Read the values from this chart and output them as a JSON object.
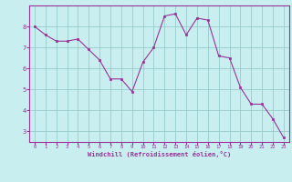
{
  "x": [
    0,
    1,
    2,
    3,
    4,
    5,
    6,
    7,
    8,
    9,
    10,
    11,
    12,
    13,
    14,
    15,
    16,
    17,
    18,
    19,
    20,
    21,
    22,
    23
  ],
  "y": [
    8.0,
    7.6,
    7.3,
    7.3,
    7.4,
    6.9,
    6.4,
    5.5,
    5.5,
    4.9,
    6.3,
    7.0,
    8.5,
    8.6,
    7.6,
    8.4,
    8.3,
    6.6,
    6.5,
    5.1,
    4.3,
    4.3,
    3.6,
    2.7
  ],
  "line_color": "#993399",
  "marker_color": "#993399",
  "bg_color": "#c8eef0",
  "grid_color": "#99cccc",
  "xlabel": "Windchill (Refroidissement éolien,°C)",
  "xlabel_color": "#993399",
  "tick_color": "#993399",
  "spine_color": "#993399",
  "xlim": [
    -0.5,
    23.5
  ],
  "ylim": [
    2.5,
    9.0
  ],
  "yticks": [
    3,
    4,
    5,
    6,
    7,
    8
  ],
  "xticks": [
    0,
    1,
    2,
    3,
    4,
    5,
    6,
    7,
    8,
    9,
    10,
    11,
    12,
    13,
    14,
    15,
    16,
    17,
    18,
    19,
    20,
    21,
    22,
    23
  ]
}
